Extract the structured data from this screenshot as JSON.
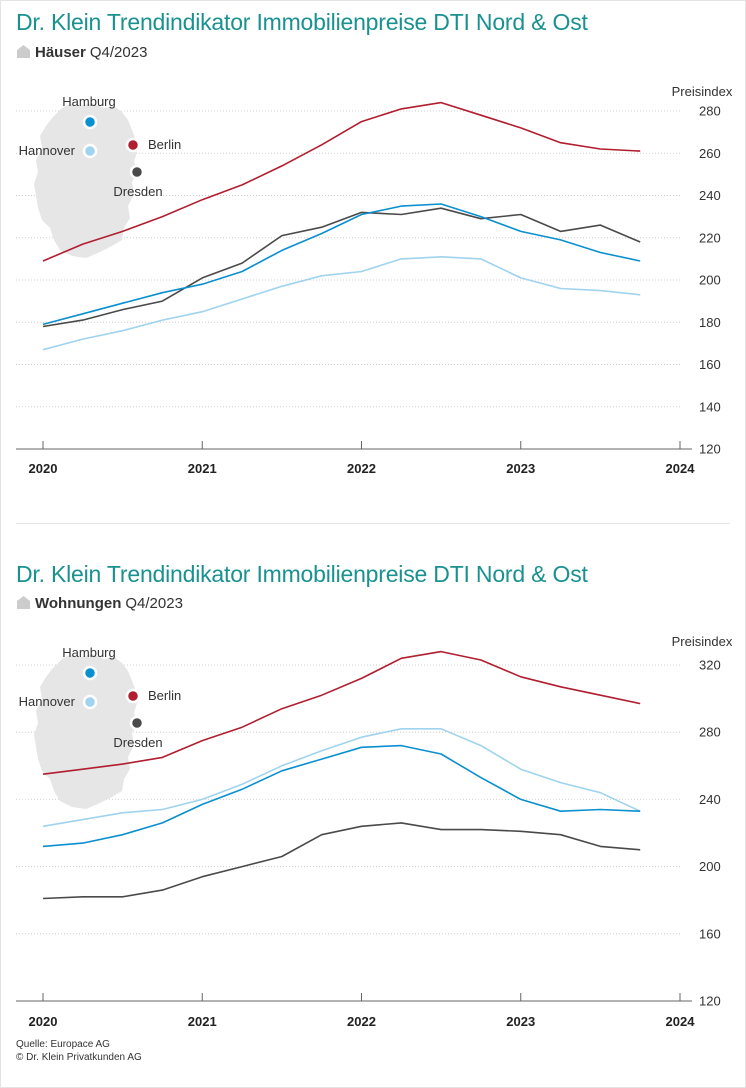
{
  "colors": {
    "title": "#1a9191",
    "Berlin": "#b01e2f",
    "Hamburg": "#0a8fcf",
    "Hannover": "#9fd3ee",
    "Dresden": "#4a4a4a",
    "map": "#e6e6e6",
    "grid": "#cfcfcf",
    "axis": "#666666"
  },
  "footer": {
    "source": "Quelle: Europace AG",
    "copyright": "© Dr. Klein Privatkunden AG"
  },
  "map_icon": "germany-map-east-north",
  "house_icon": "house-icon",
  "chart_data": [
    {
      "type": "line",
      "title": "Dr. Klein Trendindikator Immobilienpreise DTI Nord & Ost",
      "subtitle_bold": "Häuser",
      "subtitle_period": "Q4/2023",
      "ylabel": "Preisindex",
      "xlabel": "",
      "ylim": [
        120,
        285
      ],
      "yticks": [
        120,
        140,
        160,
        180,
        200,
        220,
        240,
        260,
        280
      ],
      "xlim": [
        2020,
        2024
      ],
      "xticks": [
        2020,
        2021,
        2022,
        2023,
        2024
      ],
      "x": [
        2020.0,
        2020.25,
        2020.5,
        2020.75,
        2021.0,
        2021.25,
        2021.5,
        2021.75,
        2022.0,
        2022.25,
        2022.5,
        2022.75,
        2023.0,
        2023.25,
        2023.5,
        2023.75
      ],
      "grid": true,
      "legend": "map-inset-top-left",
      "series": [
        {
          "name": "Berlin",
          "values": [
            209,
            217,
            223,
            230,
            238,
            245,
            254,
            264,
            275,
            281,
            284,
            278,
            272,
            265,
            262,
            261
          ]
        },
        {
          "name": "Hamburg",
          "values": [
            179,
            184,
            189,
            194,
            198,
            204,
            214,
            222,
            231,
            235,
            236,
            230,
            223,
            219,
            213,
            209
          ]
        },
        {
          "name": "Hannover",
          "values": [
            167,
            172,
            176,
            181,
            185,
            191,
            197,
            202,
            204,
            210,
            211,
            210,
            201,
            196,
            195,
            193
          ]
        },
        {
          "name": "Dresden",
          "values": [
            178,
            181,
            186,
            190,
            201,
            208,
            221,
            225,
            232,
            231,
            234,
            229,
            231,
            223,
            226,
            218
          ]
        }
      ]
    },
    {
      "type": "line",
      "title": "Dr. Klein Trendindikator Immobilienpreise DTI Nord & Ost",
      "subtitle_bold": "Wohnungen",
      "subtitle_period": "Q4/2023",
      "ylabel": "Preisindex",
      "xlabel": "",
      "ylim": [
        120,
        330
      ],
      "yticks": [
        120,
        160,
        200,
        240,
        280,
        320
      ],
      "xlim": [
        2020,
        2024
      ],
      "xticks": [
        2020,
        2021,
        2022,
        2023,
        2024
      ],
      "x": [
        2020.0,
        2020.25,
        2020.5,
        2020.75,
        2021.0,
        2021.25,
        2021.5,
        2021.75,
        2022.0,
        2022.25,
        2022.5,
        2022.75,
        2023.0,
        2023.25,
        2023.5,
        2023.75
      ],
      "grid": true,
      "legend": "map-inset-top-left",
      "series": [
        {
          "name": "Berlin",
          "values": [
            255,
            258,
            261,
            265,
            275,
            283,
            294,
            302,
            312,
            324,
            328,
            323,
            313,
            307,
            302,
            297
          ]
        },
        {
          "name": "Hamburg",
          "values": [
            212,
            214,
            219,
            226,
            237,
            246,
            257,
            264,
            271,
            272,
            267,
            253,
            240,
            233,
            234,
            233
          ]
        },
        {
          "name": "Hannover",
          "values": [
            224,
            228,
            232,
            234,
            240,
            249,
            260,
            269,
            277,
            282,
            282,
            272,
            258,
            250,
            244,
            233
          ]
        },
        {
          "name": "Dresden",
          "values": [
            181,
            182,
            182,
            186,
            194,
            200,
            206,
            219,
            224,
            226,
            222,
            222,
            221,
            219,
            212,
            210
          ]
        }
      ]
    }
  ]
}
